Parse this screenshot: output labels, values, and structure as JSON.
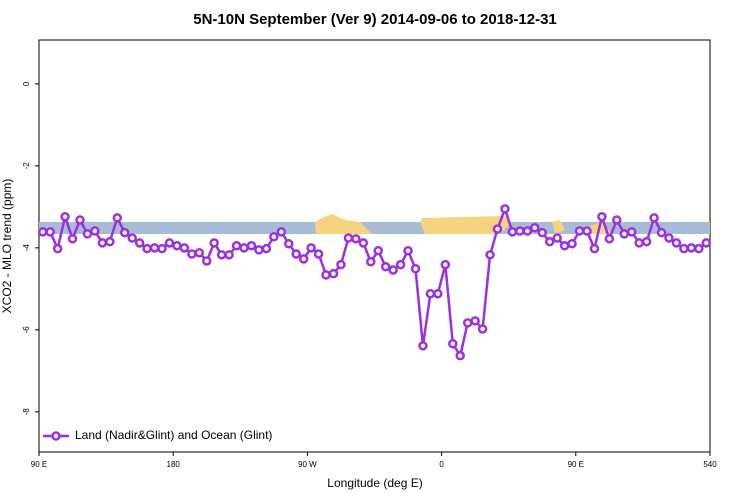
{
  "chart_data": {
    "type": "line",
    "title": "5N-10N September (Ver 9)   2014-09-06 to 2018-12-31",
    "x_label": "Longitude (deg E)",
    "y_label": "XCO2 - MLO trend (ppm)",
    "xlim": [
      90,
      540
    ],
    "xticks": [
      {
        "value": 90,
        "label": "90 E"
      },
      180,
      {
        "value": 270,
        "label": "90 W"
      },
      {
        "value": 360,
        "label": "0"
      },
      {
        "value": 450,
        "label": "90 E"
      },
      540
    ],
    "ylim": [
      -8.98,
      1.07
    ],
    "yticks": [
      0,
      -2,
      -4,
      -6,
      -8
    ],
    "legend": "bottom-left",
    "x": [
      92.5,
      97.5,
      102.5,
      107.5,
      112.5,
      117.5,
      122.5,
      127.5,
      132.5,
      137.5,
      142.5,
      147.5,
      152.5,
      157.5,
      162.5,
      167.5,
      172.5,
      177.5,
      182.5,
      187.5,
      192.5,
      197.5,
      202.5,
      207.5,
      212.5,
      217.5,
      222.5,
      227.5,
      232.5,
      237.5,
      242.5,
      247.5,
      252.5,
      257.5,
      262.5,
      267.5,
      272.5,
      277.5,
      282.5,
      287.5,
      292.5,
      297.5,
      302.5,
      307.5,
      312.5,
      317.5,
      322.5,
      327.5,
      332.5,
      337.5,
      342.5,
      347.5,
      352.5,
      357.5,
      362.5,
      367.5,
      372.5,
      377.5,
      382.5,
      387.5,
      392.5,
      397.5,
      402.5,
      407.5,
      412.5,
      417.5,
      422.5,
      427.5,
      432.5,
      437.5,
      442.5,
      447.5,
      452.5,
      457.5,
      462.5,
      467.5,
      472.5,
      477.5,
      482.5,
      487.5,
      492.5,
      497.5,
      502.5,
      507.5,
      512.5,
      517.5,
      522.5,
      527.5,
      532.5,
      537.5
    ],
    "series": [
      {
        "name": "Land (Nadir&Glint) and Ocean (Glint)",
        "color": "#9b30e0",
        "values": [
          -3.61,
          -3.61,
          -4.02,
          -3.24,
          -3.78,
          -3.32,
          -3.66,
          -3.59,
          -3.88,
          -3.85,
          -3.27,
          -3.63,
          -3.76,
          -3.88,
          -4.02,
          -4.0,
          -4.02,
          -3.88,
          -3.95,
          -4.0,
          -4.15,
          -4.12,
          -4.32,
          -3.88,
          -4.17,
          -4.17,
          -3.95,
          -4.0,
          -3.95,
          -4.05,
          -4.02,
          -3.73,
          -3.61,
          -3.9,
          -4.15,
          -4.27,
          -4.0,
          -4.15,
          -4.66,
          -4.63,
          -4.41,
          -3.76,
          -3.78,
          -3.88,
          -4.34,
          -4.07,
          -4.46,
          -4.54,
          -4.41,
          -4.07,
          -4.51,
          -6.39,
          -5.12,
          -5.12,
          -4.41,
          -6.34,
          -6.63,
          -5.83,
          -5.78,
          -5.98,
          -4.17,
          -3.54,
          -3.05,
          -3.61,
          -3.59,
          -3.59,
          -3.51,
          -3.63,
          -3.85,
          -3.76,
          -3.95,
          -3.9,
          -3.59,
          -3.59,
          -4.02,
          -3.24,
          -3.78,
          -3.32,
          -3.66,
          -3.61,
          -3.88,
          -3.85,
          -3.27,
          -3.63,
          -3.76,
          -3.88,
          -4.02,
          -4.0,
          -4.02,
          -3.88
        ]
      }
    ]
  }
}
